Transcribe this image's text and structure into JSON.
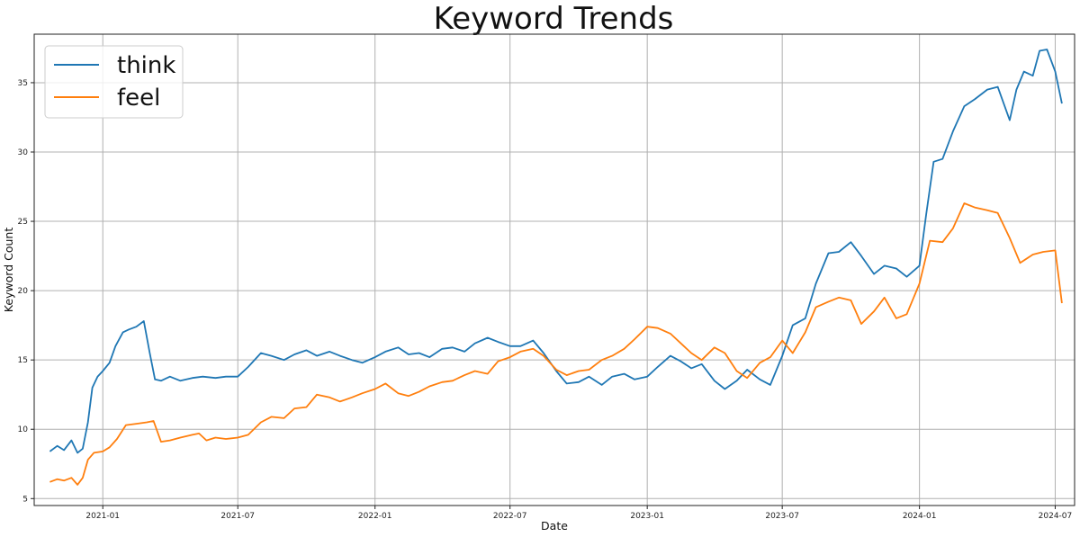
{
  "chart_data": {
    "type": "line",
    "title": "Keyword Trends",
    "xlabel": "Date",
    "ylabel": "Keyword Count",
    "x_range": [
      "2020-10-01",
      "2024-07-27"
    ],
    "ylim": [
      4.5,
      38.5
    ],
    "x_ticks": [
      "2021-01",
      "2021-07",
      "2022-01",
      "2022-07",
      "2023-01",
      "2023-07",
      "2024-01",
      "2024-07"
    ],
    "y_ticks": [
      5,
      10,
      15,
      20,
      25,
      30,
      35
    ],
    "grid": true,
    "legend_position": "top-left",
    "series": [
      {
        "name": "think",
        "color": "#1f77b4",
        "x": [
          "2020-10-22",
          "2020-11-01",
          "2020-11-10",
          "2020-11-20",
          "2020-11-28",
          "2020-12-05",
          "2020-12-12",
          "2020-12-18",
          "2020-12-25",
          "2021-01-01",
          "2021-01-10",
          "2021-01-18",
          "2021-01-28",
          "2021-02-05",
          "2021-02-15",
          "2021-02-25",
          "2021-03-05",
          "2021-03-12",
          "2021-03-20",
          "2021-04-01",
          "2021-04-15",
          "2021-05-01",
          "2021-05-15",
          "2021-06-01",
          "2021-06-15",
          "2021-07-01",
          "2021-07-15",
          "2021-08-01",
          "2021-08-15",
          "2021-09-01",
          "2021-09-15",
          "2021-10-01",
          "2021-10-15",
          "2021-11-01",
          "2021-11-15",
          "2021-12-01",
          "2021-12-15",
          "2022-01-01",
          "2022-01-15",
          "2022-02-01",
          "2022-02-15",
          "2022-03-01",
          "2022-03-15",
          "2022-04-01",
          "2022-04-15",
          "2022-05-01",
          "2022-05-15",
          "2022-06-01",
          "2022-06-15",
          "2022-07-01",
          "2022-07-15",
          "2022-08-01",
          "2022-08-15",
          "2022-09-01",
          "2022-09-15",
          "2022-10-01",
          "2022-10-15",
          "2022-11-01",
          "2022-11-15",
          "2022-12-01",
          "2022-12-15",
          "2023-01-01",
          "2023-01-15",
          "2023-02-01",
          "2023-02-15",
          "2023-03-01",
          "2023-03-15",
          "2023-04-01",
          "2023-04-15",
          "2023-05-01",
          "2023-05-15",
          "2023-06-01",
          "2023-06-15",
          "2023-07-01",
          "2023-07-15",
          "2023-08-01",
          "2023-08-15",
          "2023-09-01",
          "2023-09-15",
          "2023-10-01",
          "2023-10-15",
          "2023-11-01",
          "2023-11-15",
          "2023-12-01",
          "2023-12-15",
          "2024-01-01",
          "2024-01-10",
          "2024-01-20",
          "2024-02-01",
          "2024-02-15",
          "2024-03-01",
          "2024-03-15",
          "2024-04-01",
          "2024-04-15",
          "2024-05-01",
          "2024-05-10",
          "2024-05-20",
          "2024-06-01",
          "2024-06-10",
          "2024-06-20",
          "2024-07-01",
          "2024-07-10"
        ],
        "values": [
          8.4,
          8.8,
          8.5,
          9.2,
          8.3,
          8.6,
          10.5,
          13.0,
          13.8,
          14.2,
          14.8,
          16.0,
          17.0,
          17.2,
          17.4,
          17.8,
          15.5,
          13.6,
          13.5,
          13.8,
          13.5,
          13.7,
          13.8,
          13.7,
          13.8,
          13.8,
          14.5,
          15.5,
          15.3,
          15.0,
          15.4,
          15.7,
          15.3,
          15.6,
          15.3,
          15.0,
          14.8,
          15.2,
          15.6,
          15.9,
          15.4,
          15.5,
          15.2,
          15.8,
          15.9,
          15.6,
          16.2,
          16.6,
          16.3,
          16.0,
          16.0,
          16.4,
          15.5,
          14.2,
          13.3,
          13.4,
          13.8,
          13.2,
          13.8,
          14.0,
          13.6,
          13.8,
          14.5,
          15.3,
          14.9,
          14.4,
          14.7,
          13.5,
          12.9,
          13.5,
          14.3,
          13.6,
          13.2,
          15.3,
          17.5,
          18.0,
          20.5,
          22.7,
          22.8,
          23.5,
          22.5,
          21.2,
          21.8,
          21.6,
          21.0,
          21.8,
          25.5,
          29.3,
          29.5,
          31.5,
          33.3,
          33.8,
          34.5,
          34.7,
          32.3,
          34.5,
          35.8,
          35.5,
          37.3,
          37.4,
          35.8,
          33.5
        ]
      },
      {
        "name": "feel",
        "color": "#ff7f0e",
        "x": [
          "2020-10-22",
          "2020-11-01",
          "2020-11-10",
          "2020-11-20",
          "2020-11-28",
          "2020-12-05",
          "2020-12-12",
          "2020-12-20",
          "2021-01-01",
          "2021-01-10",
          "2021-01-20",
          "2021-02-01",
          "2021-02-15",
          "2021-03-01",
          "2021-03-10",
          "2021-03-20",
          "2021-04-01",
          "2021-04-15",
          "2021-05-01",
          "2021-05-10",
          "2021-05-20",
          "2021-06-01",
          "2021-06-15",
          "2021-07-01",
          "2021-07-15",
          "2021-08-01",
          "2021-08-15",
          "2021-09-01",
          "2021-09-15",
          "2021-10-01",
          "2021-10-15",
          "2021-11-01",
          "2021-11-15",
          "2021-12-01",
          "2021-12-15",
          "2022-01-01",
          "2022-01-15",
          "2022-02-01",
          "2022-02-15",
          "2022-03-01",
          "2022-03-15",
          "2022-04-01",
          "2022-04-15",
          "2022-05-01",
          "2022-05-15",
          "2022-06-01",
          "2022-06-15",
          "2022-07-01",
          "2022-07-15",
          "2022-08-01",
          "2022-08-15",
          "2022-09-01",
          "2022-09-15",
          "2022-10-01",
          "2022-10-15",
          "2022-11-01",
          "2022-11-15",
          "2022-12-01",
          "2022-12-15",
          "2023-01-01",
          "2023-01-15",
          "2023-02-01",
          "2023-02-15",
          "2023-03-01",
          "2023-03-15",
          "2023-04-01",
          "2023-04-15",
          "2023-05-01",
          "2023-05-15",
          "2023-06-01",
          "2023-06-15",
          "2023-07-01",
          "2023-07-15",
          "2023-08-01",
          "2023-08-15",
          "2023-09-01",
          "2023-09-15",
          "2023-10-01",
          "2023-10-15",
          "2023-11-01",
          "2023-11-15",
          "2023-12-01",
          "2023-12-15",
          "2024-01-01",
          "2024-01-15",
          "2024-02-01",
          "2024-02-15",
          "2024-03-01",
          "2024-03-15",
          "2024-04-01",
          "2024-04-15",
          "2024-05-01",
          "2024-05-15",
          "2024-06-01",
          "2024-06-15",
          "2024-07-01",
          "2024-07-10"
        ],
        "values": [
          6.2,
          6.4,
          6.3,
          6.5,
          6.0,
          6.5,
          7.8,
          8.3,
          8.4,
          8.7,
          9.3,
          10.3,
          10.4,
          10.5,
          10.6,
          9.1,
          9.2,
          9.4,
          9.6,
          9.7,
          9.2,
          9.4,
          9.3,
          9.4,
          9.6,
          10.5,
          10.9,
          10.8,
          11.5,
          11.6,
          12.5,
          12.3,
          12.0,
          12.3,
          12.6,
          12.9,
          13.3,
          12.6,
          12.4,
          12.7,
          13.1,
          13.4,
          13.5,
          13.9,
          14.2,
          14.0,
          14.9,
          15.2,
          15.6,
          15.8,
          15.3,
          14.3,
          13.9,
          14.2,
          14.3,
          15.0,
          15.3,
          15.8,
          16.5,
          17.4,
          17.3,
          16.9,
          16.2,
          15.5,
          15.0,
          15.9,
          15.5,
          14.2,
          13.7,
          14.8,
          15.2,
          16.4,
          15.5,
          17.0,
          18.8,
          19.2,
          19.5,
          19.3,
          17.6,
          18.5,
          19.5,
          18.0,
          18.3,
          20.5,
          23.6,
          23.5,
          24.5,
          26.3,
          26.0,
          25.8,
          25.6,
          23.8,
          22.0,
          22.6,
          22.8,
          22.9,
          19.1
        ]
      }
    ]
  }
}
